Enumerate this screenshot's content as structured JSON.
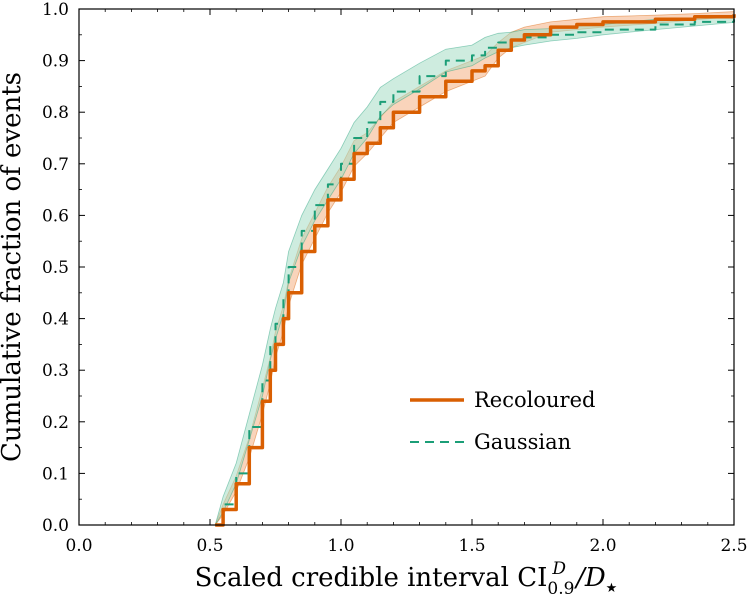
{
  "chart_data": {
    "type": "line",
    "title": "",
    "xlabel": "Scaled credible interval CI",
    "xlabel_sub": "0.9",
    "xlabel_sup": "D",
    "xlabel_tail": "/D",
    "xlabel_tail_sub": "★",
    "ylabel": "Cumulative fraction of events",
    "xlim": [
      0.0,
      2.5
    ],
    "ylim": [
      0.0,
      1.0
    ],
    "xticks": [
      0.0,
      0.5,
      1.0,
      1.5,
      2.0,
      2.5
    ],
    "xtick_labels": [
      "0.0",
      "0.5",
      "1.0",
      "1.5",
      "2.0",
      "2.5"
    ],
    "yticks": [
      0.0,
      0.1,
      0.2,
      0.3,
      0.4,
      0.5,
      0.6,
      0.7,
      0.8,
      0.9,
      1.0
    ],
    "ytick_labels": [
      "0.0",
      "0.1",
      "0.2",
      "0.3",
      "0.4",
      "0.5",
      "0.6",
      "0.7",
      "0.8",
      "0.9",
      "1.0"
    ],
    "grid": false,
    "legend_position": "lower-right",
    "series": [
      {
        "name": "Recoloured",
        "color": "#d95f02",
        "band_color": "#f4b084",
        "style": "solid",
        "x": [
          0.52,
          0.55,
          0.6,
          0.65,
          0.7,
          0.73,
          0.75,
          0.78,
          0.8,
          0.85,
          0.9,
          0.95,
          1.0,
          1.05,
          1.1,
          1.15,
          1.2,
          1.3,
          1.4,
          1.5,
          1.55,
          1.6,
          1.65,
          1.7,
          1.8,
          1.9,
          2.0,
          2.2,
          2.35,
          2.5
        ],
        "y": [
          0.0,
          0.03,
          0.08,
          0.15,
          0.24,
          0.3,
          0.35,
          0.4,
          0.45,
          0.53,
          0.58,
          0.63,
          0.67,
          0.72,
          0.74,
          0.77,
          0.8,
          0.83,
          0.86,
          0.88,
          0.89,
          0.92,
          0.94,
          0.95,
          0.965,
          0.97,
          0.975,
          0.98,
          0.985,
          0.99
        ],
        "band_halfwidth": [
          0.0,
          0.01,
          0.015,
          0.02,
          0.025,
          0.025,
          0.025,
          0.025,
          0.025,
          0.025,
          0.025,
          0.025,
          0.025,
          0.025,
          0.02,
          0.02,
          0.02,
          0.02,
          0.02,
          0.02,
          0.02,
          0.015,
          0.015,
          0.015,
          0.01,
          0.01,
          0.01,
          0.008,
          0.006,
          0.005
        ]
      },
      {
        "name": "Gaussian",
        "color": "#1b9e77",
        "band_color": "#a6dcc5",
        "style": "dashed",
        "x": [
          0.52,
          0.55,
          0.6,
          0.65,
          0.7,
          0.73,
          0.75,
          0.78,
          0.8,
          0.85,
          0.9,
          0.95,
          1.0,
          1.05,
          1.1,
          1.15,
          1.2,
          1.3,
          1.4,
          1.5,
          1.55,
          1.6,
          1.65,
          1.7,
          1.8,
          1.9,
          2.0,
          2.2,
          2.35,
          2.5
        ],
        "y": [
          0.0,
          0.04,
          0.1,
          0.19,
          0.28,
          0.35,
          0.39,
          0.44,
          0.5,
          0.57,
          0.62,
          0.66,
          0.7,
          0.75,
          0.78,
          0.82,
          0.84,
          0.87,
          0.9,
          0.91,
          0.925,
          0.935,
          0.94,
          0.945,
          0.95,
          0.955,
          0.96,
          0.97,
          0.975,
          0.98
        ],
        "band_halfwidth": [
          0.0,
          0.015,
          0.02,
          0.025,
          0.03,
          0.03,
          0.03,
          0.03,
          0.03,
          0.03,
          0.03,
          0.03,
          0.03,
          0.03,
          0.03,
          0.028,
          0.025,
          0.025,
          0.022,
          0.02,
          0.02,
          0.018,
          0.015,
          0.015,
          0.012,
          0.012,
          0.01,
          0.01,
          0.008,
          0.006
        ]
      }
    ]
  }
}
